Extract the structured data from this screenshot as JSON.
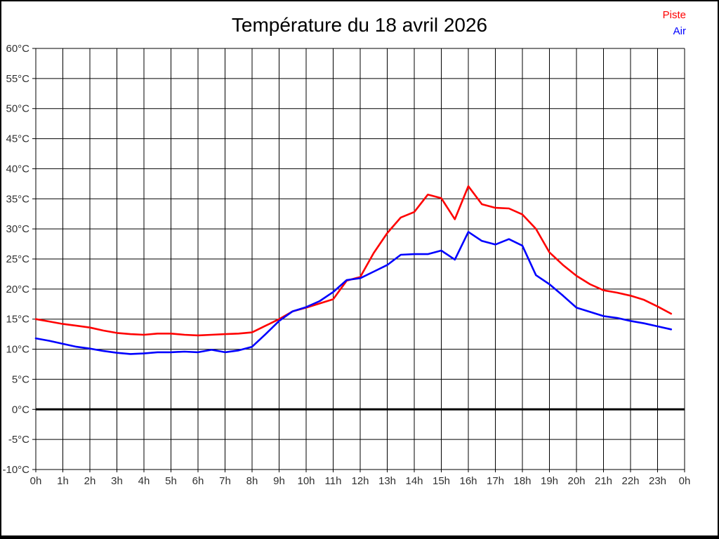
{
  "title": "Température du 18 avril 2026",
  "colors": {
    "piste": "#ff0000",
    "air": "#0000ff",
    "grid": "#000000",
    "zero_line": "#000000",
    "axis_label": "#303030",
    "background": "#ffffff",
    "frame": "#000000"
  },
  "chart_data": {
    "type": "line",
    "title": "Température du 18 avril 2026",
    "xlabel": "",
    "ylabel": "",
    "xlim": [
      0,
      24
    ],
    "ylim": [
      -10,
      60
    ],
    "grid": true,
    "zero_line_bold": true,
    "legend_position": "top-right",
    "x_tick_labels": [
      "0h",
      "1h",
      "2h",
      "3h",
      "4h",
      "5h",
      "6h",
      "7h",
      "8h",
      "9h",
      "10h",
      "11h",
      "12h",
      "13h",
      "14h",
      "15h",
      "16h",
      "17h",
      "18h",
      "19h",
      "20h",
      "21h",
      "22h",
      "23h",
      "0h"
    ],
    "x_tick_values": [
      0,
      1,
      2,
      3,
      4,
      5,
      6,
      7,
      8,
      9,
      10,
      11,
      12,
      13,
      14,
      15,
      16,
      17,
      18,
      19,
      20,
      21,
      22,
      23,
      24
    ],
    "y_tick_labels": [
      "60°C",
      "55°C",
      "50°C",
      "45°C",
      "40°C",
      "35°C",
      "30°C",
      "25°C",
      "20°C",
      "15°C",
      "10°C",
      "5°C",
      "0°C",
      "-5°C",
      "-10°C"
    ],
    "y_tick_values": [
      60,
      55,
      50,
      45,
      40,
      35,
      30,
      25,
      20,
      15,
      10,
      5,
      0,
      -5,
      -10
    ],
    "x": [
      0,
      0.5,
      1,
      1.5,
      2,
      2.5,
      3,
      3.5,
      4,
      4.5,
      5,
      5.5,
      6,
      6.5,
      7,
      7.5,
      8,
      8.5,
      9,
      9.5,
      10,
      10.5,
      11,
      11.5,
      12,
      12.5,
      13,
      13.5,
      14,
      14.5,
      15,
      15.5,
      16,
      16.5,
      17,
      17.5,
      18,
      18.5,
      19,
      19.5,
      20,
      20.5,
      21,
      21.5,
      22,
      22.5,
      23,
      23.5
    ],
    "series": [
      {
        "name": "Piste",
        "color": "#ff0000",
        "values": [
          15.0,
          14.6,
          14.2,
          13.9,
          13.6,
          13.1,
          12.7,
          12.5,
          12.4,
          12.6,
          12.6,
          12.4,
          12.3,
          12.4,
          12.5,
          12.6,
          12.8,
          13.9,
          15.0,
          16.3,
          16.9,
          17.6,
          18.3,
          21.4,
          22.0,
          26.0,
          29.3,
          31.9,
          32.8,
          35.7,
          35.1,
          31.6,
          37.1,
          34.1,
          33.5,
          33.4,
          32.4,
          30.0,
          26.1,
          24.0,
          22.2,
          20.8,
          19.8,
          19.4,
          18.9,
          18.2,
          17.1,
          15.9
        ]
      },
      {
        "name": "Air",
        "color": "#0000ff",
        "values": [
          11.8,
          11.4,
          10.9,
          10.4,
          10.1,
          9.7,
          9.4,
          9.2,
          9.3,
          9.5,
          9.5,
          9.6,
          9.5,
          9.9,
          9.5,
          9.8,
          10.4,
          12.5,
          14.7,
          16.3,
          17.0,
          18.0,
          19.5,
          21.5,
          21.8,
          22.9,
          24.0,
          25.7,
          25.8,
          25.8,
          26.4,
          24.9,
          29.5,
          28.0,
          27.4,
          28.3,
          27.2,
          22.3,
          20.8,
          18.9,
          16.9,
          16.2,
          15.5,
          15.2,
          14.7,
          14.3,
          13.8,
          13.3
        ]
      }
    ]
  }
}
